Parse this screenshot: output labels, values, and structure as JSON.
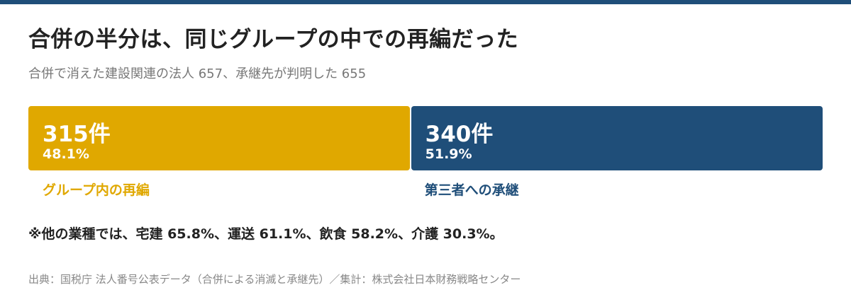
{
  "colors": {
    "top_rule": "#1f4e79",
    "group": "#e0a800",
    "third_party": "#1f4e79"
  },
  "title": "合併の半分は、同じグループの中での再編だった",
  "subtitle": "合併で消えた建設関連の法人 657、承継先が判明した 655",
  "chart_data": {
    "type": "bar",
    "orientation": "horizontal-stacked",
    "title": "合併の半分は、同じグループの中での再編だった",
    "subtitle": "合併で消えた建設関連の法人 657、承継先が判明した 655",
    "total": 655,
    "segments": [
      {
        "name": "グループ内の再編",
        "value": 315,
        "count_label": "315件",
        "percent": 48.1,
        "percent_label": "48.1%",
        "color": "#e0a800"
      },
      {
        "name": "第三者への承継",
        "value": 340,
        "count_label": "340件",
        "percent": 51.9,
        "percent_label": "51.9%",
        "color": "#1f4e79"
      }
    ]
  },
  "note": "※他の業種では、宅建 65.8%、運送 61.1%、飲食 58.2%、介護 30.3%。",
  "source": "出典：国税庁 法人番号公表データ（合併による消滅と承継先）／集計：株式会社日本財務戦略センター"
}
